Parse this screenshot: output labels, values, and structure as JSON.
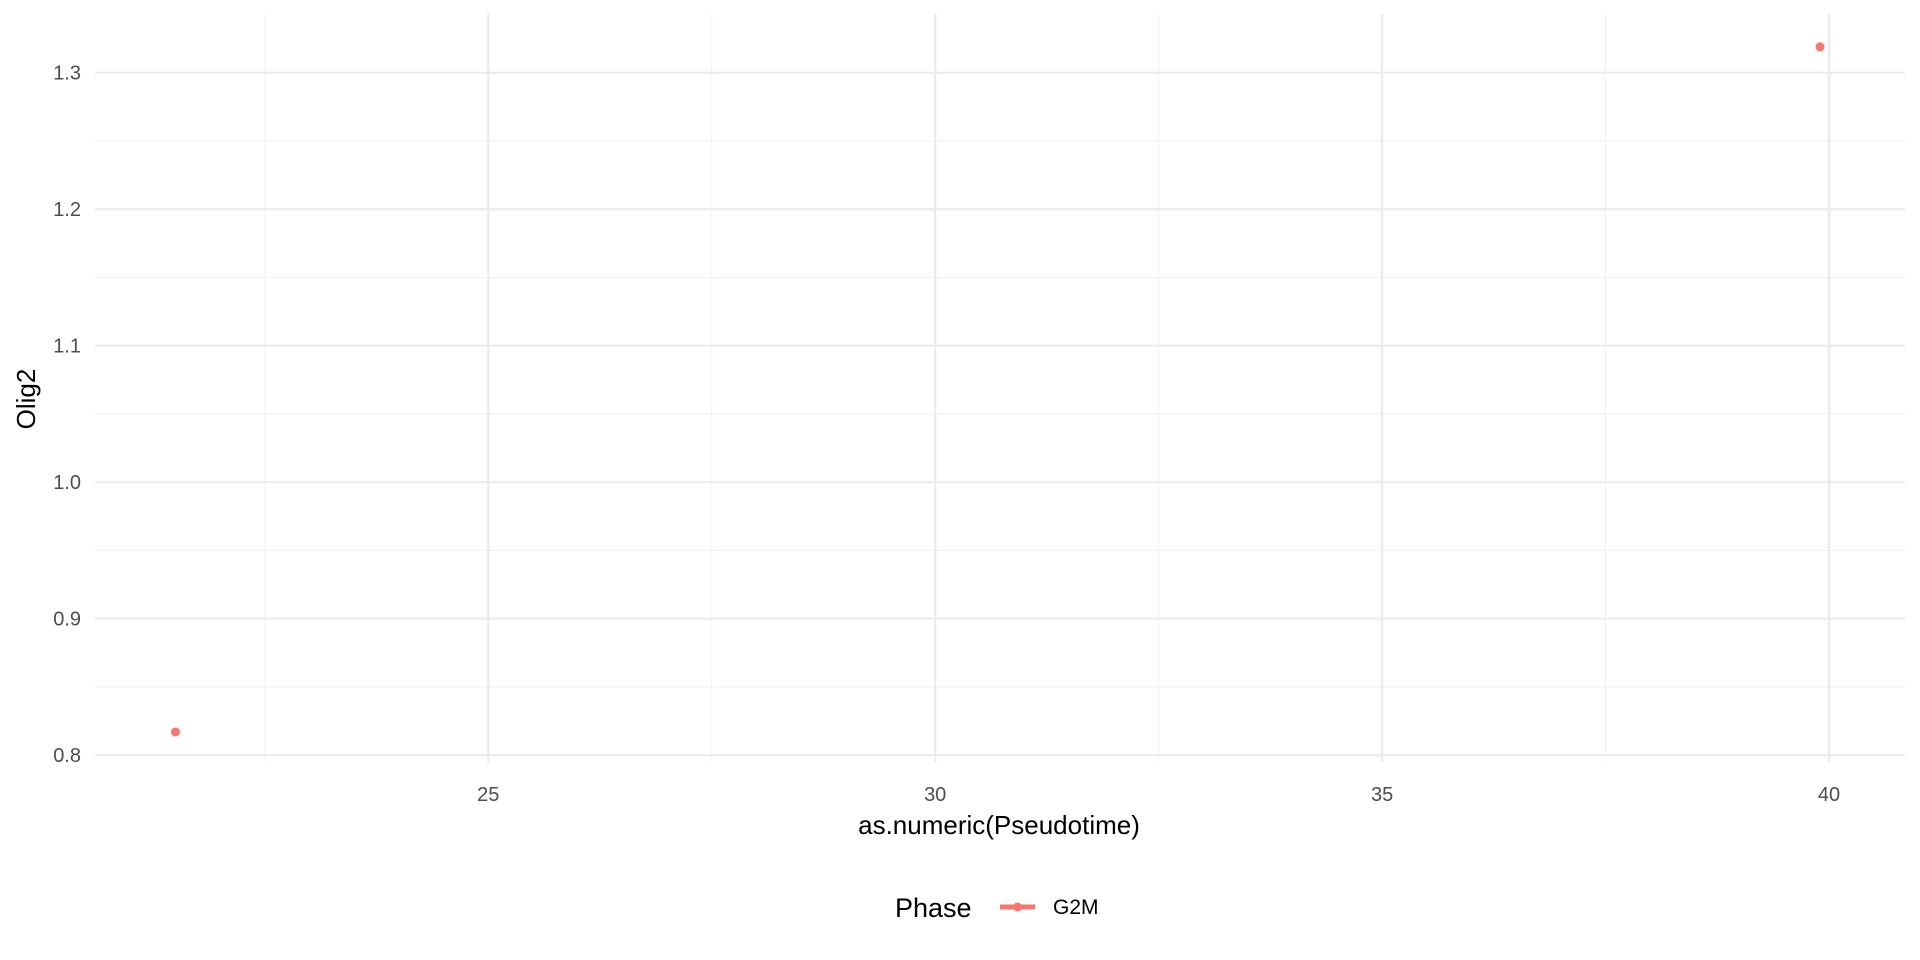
{
  "chart_data": {
    "type": "scatter",
    "title": "",
    "xlabel": "as.numeric(Pseudotime)",
    "ylabel": "Olig2",
    "xlim": [
      20.6,
      40.85
    ],
    "ylim": [
      0.795,
      1.343
    ],
    "x_ticks": [
      25,
      30,
      35,
      40
    ],
    "y_ticks": [
      0.8,
      0.9,
      1.0,
      1.1,
      1.2,
      1.3
    ],
    "x_tick_labels": [
      "25",
      "30",
      "35",
      "40"
    ],
    "y_tick_labels": [
      "0.8",
      "0.9",
      "1.0",
      "1.1",
      "1.2",
      "1.3"
    ],
    "grid": true,
    "legend": {
      "title": "Phase",
      "position": "bottom",
      "entries": [
        {
          "label": "G2M",
          "color": "#F8766D"
        }
      ]
    },
    "series": [
      {
        "name": "G2M",
        "color": "#F8766D",
        "points": [
          {
            "x": 21.5,
            "y": 0.817
          },
          {
            "x": 39.9,
            "y": 1.319
          }
        ]
      }
    ]
  }
}
